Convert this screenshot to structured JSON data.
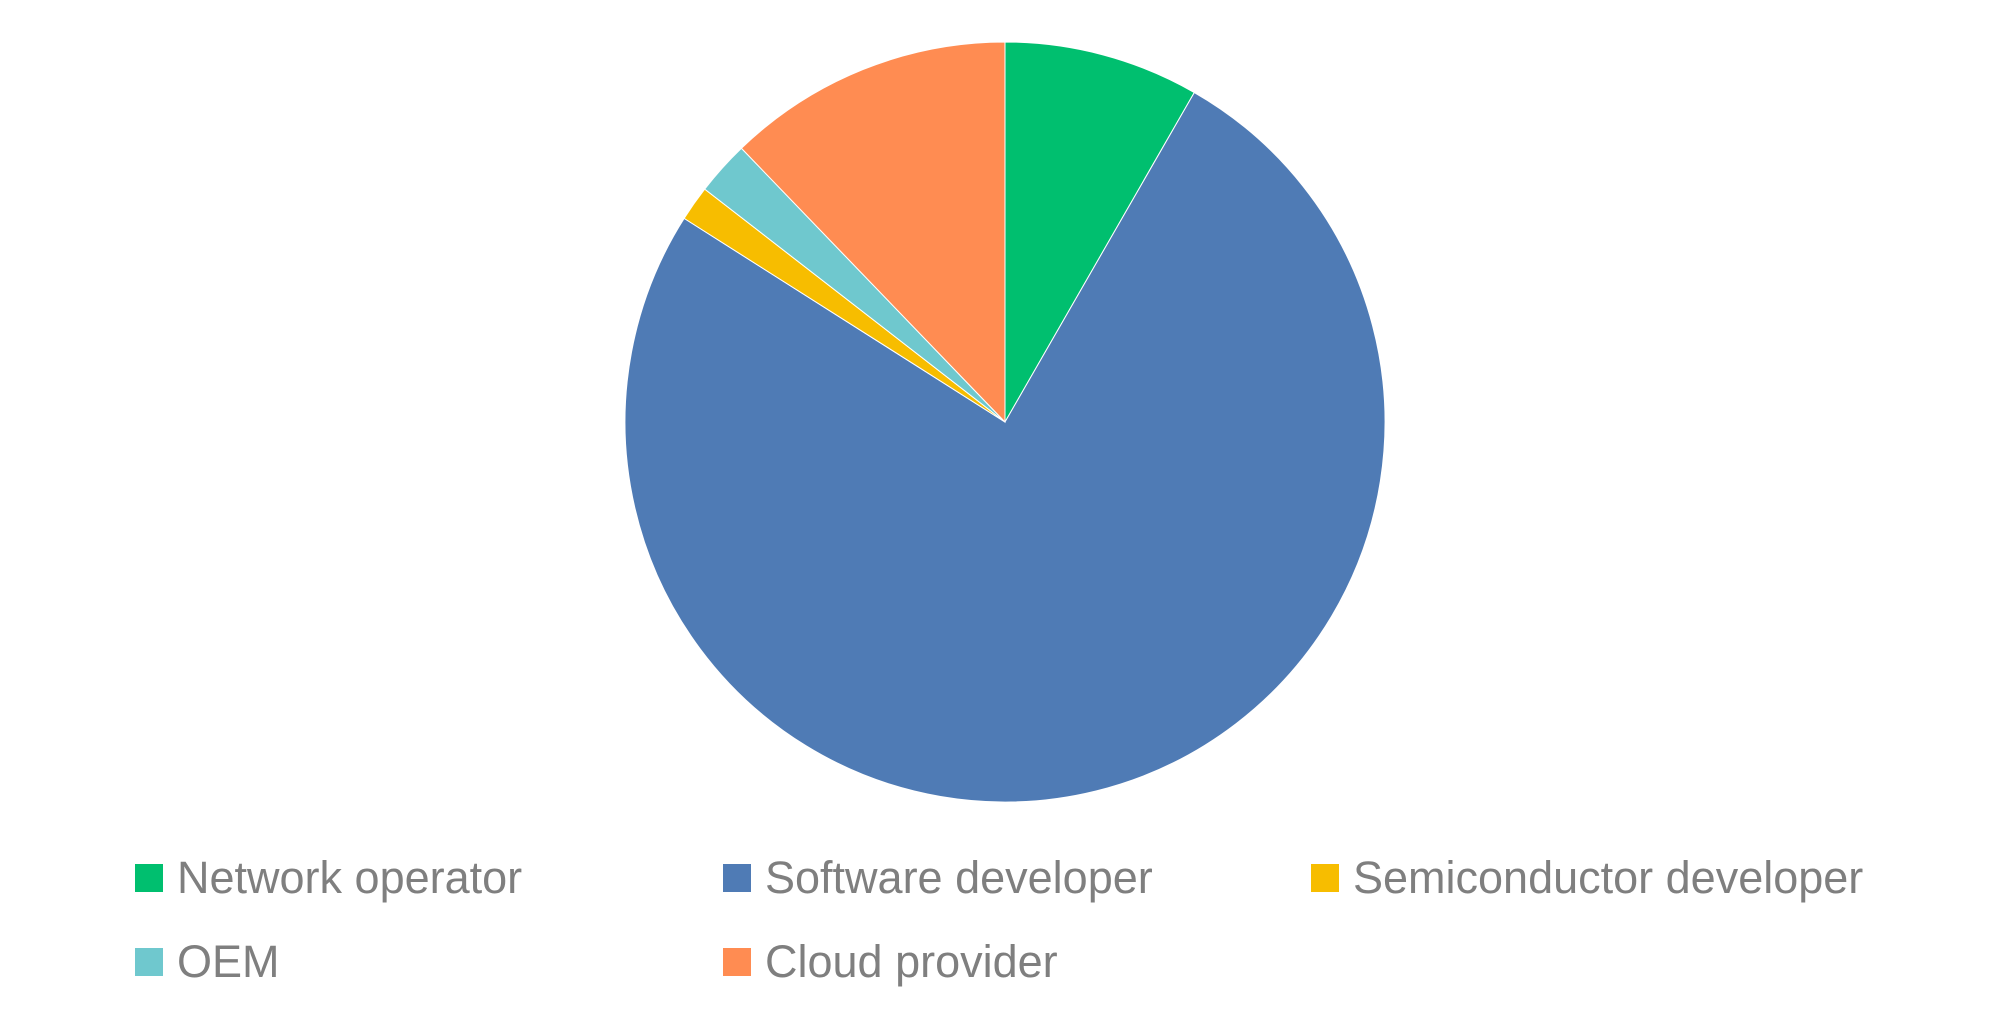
{
  "chart_data": {
    "type": "pie",
    "categories": [
      "Network operator",
      "Software developer",
      "Semiconductor developer",
      "OEM",
      "Cloud provider"
    ],
    "values": [
      8.3,
      75.7,
      1.5,
      2.3,
      12.2
    ],
    "unit": "%",
    "start_angle_deg": 0,
    "direction": "clockwise",
    "legend_position": "bottom",
    "colors": [
      "#00bf6f",
      "#4f7bb5",
      "#f7bd00",
      "#6fc8ce",
      "#ff8c52"
    ],
    "title": ""
  }
}
